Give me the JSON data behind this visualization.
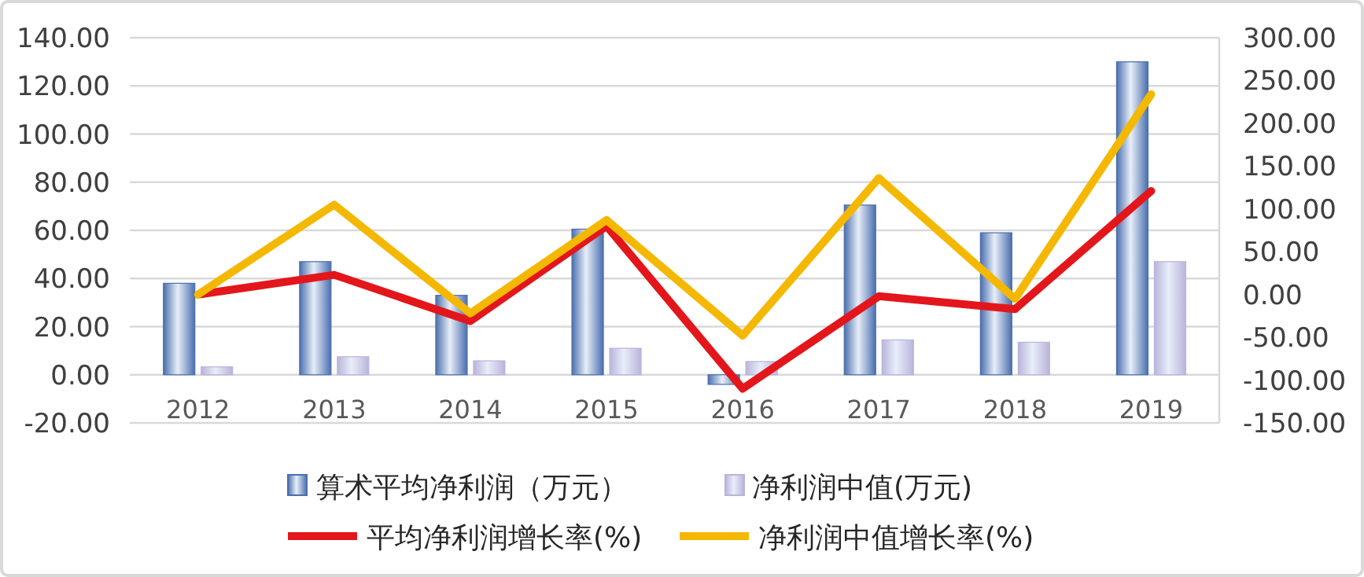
{
  "chart_data": {
    "type": "bar",
    "categories": [
      "2012",
      "2013",
      "2014",
      "2015",
      "2016",
      "2017",
      "2018",
      "2019"
    ],
    "series": [
      {
        "name": "算术平均净利润（万元）",
        "color": "#4a6fae",
        "values": [
          38,
          47,
          33,
          60.5,
          -4,
          70.5,
          59,
          130
        ]
      },
      {
        "name": "净利润中值(万元)",
        "color": "#b9b4dc",
        "values": [
          3.3,
          7.5,
          5.8,
          11,
          5.5,
          14.5,
          13.5,
          47
        ]
      },
      {
        "name": "平均净利润增长率(%)",
        "type": "line",
        "axis": "y2",
        "color": "#e3161b",
        "values": [
          0,
          23,
          -31,
          80,
          -110,
          -2,
          -17,
          121
        ]
      },
      {
        "name": "净利润中值增长率(%)",
        "type": "line",
        "axis": "y2",
        "color": "#f5b800",
        "values": [
          0,
          105,
          -22,
          87,
          -48,
          136,
          -5,
          234
        ]
      }
    ],
    "ylim": [
      -20,
      140
    ],
    "yticks": [
      {
        "value": -20,
        "label": "-20.00"
      },
      {
        "value": 0,
        "label": "0.00"
      },
      {
        "value": 20,
        "label": "20.00"
      },
      {
        "value": 40,
        "label": "40.00"
      },
      {
        "value": 60,
        "label": "60.00"
      },
      {
        "value": 80,
        "label": "80.00"
      },
      {
        "value": 100,
        "label": "100.00"
      },
      {
        "value": 120,
        "label": "120.00"
      },
      {
        "value": 140,
        "label": "140.00"
      }
    ],
    "y2lim": [
      -150,
      300
    ],
    "y2ticks": [
      {
        "value": -150,
        "label": "-150.00"
      },
      {
        "value": -100,
        "label": "-100.00"
      },
      {
        "value": -50,
        "label": "-50.00"
      },
      {
        "value": 0,
        "label": "0.00"
      },
      {
        "value": 50,
        "label": "50.00"
      },
      {
        "value": 100,
        "label": "100.00"
      },
      {
        "value": 150,
        "label": "150.00"
      },
      {
        "value": 200,
        "label": "200.00"
      },
      {
        "value": 250,
        "label": "250.00"
      },
      {
        "value": 300,
        "label": "300.00"
      }
    ],
    "grid": "y",
    "legend": "bottom",
    "marker": "none",
    "line_style": "solid"
  }
}
